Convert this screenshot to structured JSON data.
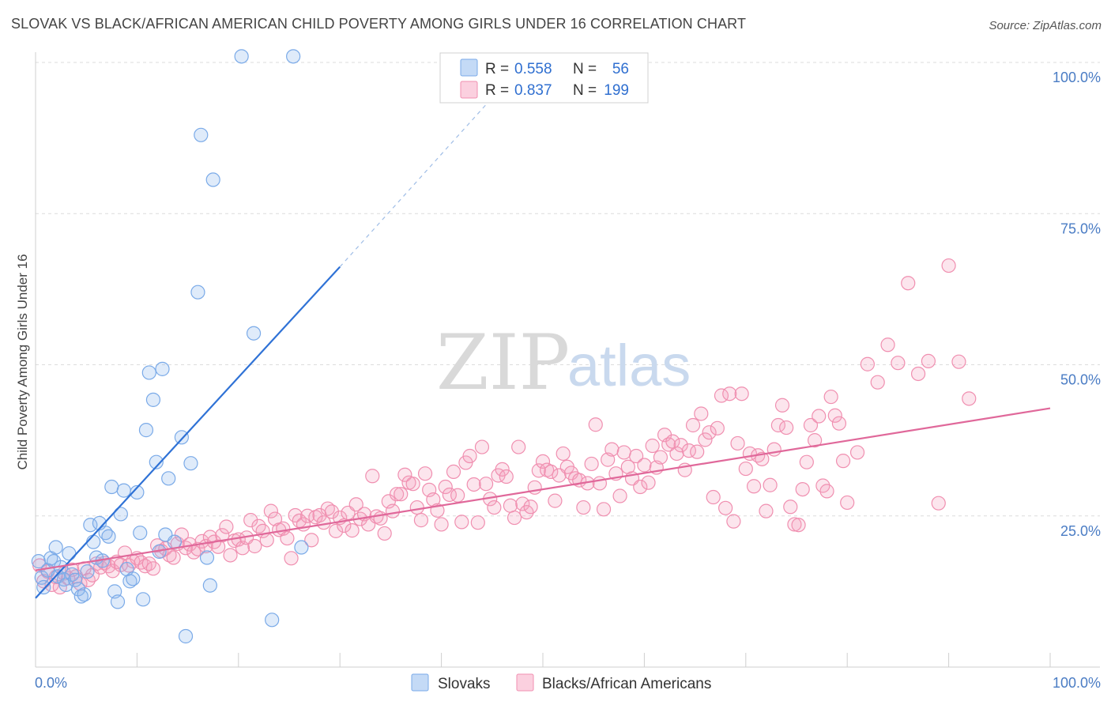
{
  "title": "SLOVAK VS BLACK/AFRICAN AMERICAN CHILD POVERTY AMONG GIRLS UNDER 16 CORRELATION CHART",
  "source": "Source: ZipAtlas.com",
  "watermark": {
    "zip": "ZIP",
    "atlas": "atlas"
  },
  "colors": {
    "slovak": "#7aaae8",
    "black": "#f08fb0",
    "slovak_line": "#2f72d6",
    "black_line": "#e0689a"
  },
  "legend": {
    "r_label": "R =",
    "n_label": "N =",
    "slovak": {
      "r": "0.558",
      "n": "56"
    },
    "black": {
      "r": "0.837",
      "n": "199"
    }
  },
  "bottom_legend": {
    "slovak": "Slovaks",
    "black": "Blacks/African Americans"
  },
  "chart_data": {
    "type": "scatter",
    "title": "SLOVAK VS BLACK/AFRICAN AMERICAN CHILD POVERTY AMONG GIRLS UNDER 16 CORRELATION CHART",
    "xlabel": "",
    "ylabel": "Child Poverty Among Girls Under 16",
    "xlim": [
      0,
      100
    ],
    "ylim": [
      0,
      100
    ],
    "x_tick_labels": [
      "0.0%",
      "100.0%"
    ],
    "y_tick_values": [
      25,
      50,
      75,
      100
    ],
    "y_tick_labels": [
      "25.0%",
      "50.0%",
      "75.0%",
      "100.0%"
    ],
    "grid": true,
    "legend_position": "top-center",
    "series": [
      {
        "name": "Slovaks",
        "r": 0.558,
        "n": 56,
        "trend": {
          "x": [
            0,
            30
          ],
          "y": [
            11.4,
            66.2
          ],
          "dashed_to": [
            46,
            96.0
          ]
        },
        "points": [
          [
            0.3,
            17.5
          ],
          [
            0.6,
            14.8
          ],
          [
            0.8,
            13.2
          ],
          [
            1.2,
            16.0
          ],
          [
            1.5,
            18.0
          ],
          [
            1.8,
            17.5
          ],
          [
            2.0,
            19.8
          ],
          [
            2.2,
            15.0
          ],
          [
            2.5,
            16.5
          ],
          [
            2.8,
            14.5
          ],
          [
            3.0,
            13.6
          ],
          [
            3.3,
            18.8
          ],
          [
            3.6,
            15.3
          ],
          [
            3.9,
            14.4
          ],
          [
            4.2,
            12.9
          ],
          [
            4.5,
            11.7
          ],
          [
            4.8,
            12.0
          ],
          [
            5.1,
            15.8
          ],
          [
            5.4,
            23.5
          ],
          [
            5.7,
            20.7
          ],
          [
            6.0,
            18.1
          ],
          [
            6.3,
            23.8
          ],
          [
            6.6,
            17.6
          ],
          [
            6.9,
            22.2
          ],
          [
            7.2,
            21.6
          ],
          [
            7.5,
            29.8
          ],
          [
            7.8,
            12.5
          ],
          [
            8.1,
            10.8
          ],
          [
            8.4,
            25.3
          ],
          [
            8.7,
            29.2
          ],
          [
            9.0,
            16.2
          ],
          [
            9.3,
            14.2
          ],
          [
            9.6,
            14.6
          ],
          [
            10.0,
            28.9
          ],
          [
            10.3,
            22.2
          ],
          [
            10.6,
            11.2
          ],
          [
            10.9,
            39.2
          ],
          [
            11.2,
            48.7
          ],
          [
            11.6,
            44.2
          ],
          [
            11.9,
            33.9
          ],
          [
            12.2,
            19.1
          ],
          [
            12.5,
            49.3
          ],
          [
            12.8,
            21.9
          ],
          [
            13.1,
            31.2
          ],
          [
            13.7,
            20.7
          ],
          [
            14.4,
            38.0
          ],
          [
            14.8,
            5.1
          ],
          [
            15.3,
            33.7
          ],
          [
            16.0,
            62.0
          ],
          [
            16.3,
            88.0
          ],
          [
            16.9,
            18.1
          ],
          [
            17.2,
            13.5
          ],
          [
            17.5,
            80.6
          ],
          [
            21.5,
            55.2
          ],
          [
            23.3,
            7.8
          ],
          [
            26.2,
            19.8
          ],
          [
            20.3,
            101.0
          ],
          [
            25.4,
            101.0
          ]
        ]
      },
      {
        "name": "Blacks/African Americans",
        "r": 0.837,
        "n": 199,
        "trend": {
          "x": [
            0,
            100
          ],
          "y": [
            16.0,
            42.8
          ]
        },
        "points": [
          [
            0.4,
            16.8
          ],
          [
            0.8,
            14.2
          ],
          [
            1.2,
            15.8
          ],
          [
            1.6,
            13.6
          ],
          [
            2.0,
            14.9
          ],
          [
            2.4,
            13.2
          ],
          [
            2.8,
            15.5
          ],
          [
            3.2,
            14.7
          ],
          [
            3.6,
            16.1
          ],
          [
            4.0,
            15.0
          ],
          [
            4.4,
            13.8
          ],
          [
            4.8,
            16.3
          ],
          [
            5.2,
            14.4
          ],
          [
            5.6,
            15.2
          ],
          [
            6.0,
            17.1
          ],
          [
            6.4,
            16.5
          ],
          [
            6.8,
            17.2
          ],
          [
            7.2,
            16.7
          ],
          [
            7.6,
            15.9
          ],
          [
            8.0,
            17.4
          ],
          [
            8.4,
            16.9
          ],
          [
            8.8,
            18.9
          ],
          [
            9.2,
            16.8
          ],
          [
            9.6,
            17.5
          ],
          [
            10.0,
            18.0
          ],
          [
            10.4,
            17.3
          ],
          [
            10.8,
            16.7
          ],
          [
            11.2,
            17.1
          ],
          [
            11.6,
            16.3
          ],
          [
            12.0,
            20.1
          ],
          [
            12.4,
            19.2
          ],
          [
            12.8,
            19.6
          ],
          [
            13.2,
            18.5
          ],
          [
            13.6,
            18.1
          ],
          [
            14.0,
            20.4
          ],
          [
            14.4,
            21.9
          ],
          [
            14.8,
            19.7
          ],
          [
            15.2,
            20.3
          ],
          [
            15.6,
            19.0
          ],
          [
            16.0,
            19.5
          ],
          [
            16.4,
            20.8
          ],
          [
            16.8,
            20.0
          ],
          [
            17.2,
            21.5
          ],
          [
            17.6,
            20.7
          ],
          [
            18.0,
            19.9
          ],
          [
            18.4,
            21.8
          ],
          [
            18.8,
            23.2
          ],
          [
            19.2,
            18.5
          ],
          [
            19.6,
            20.9
          ],
          [
            20.0,
            21.1
          ],
          [
            20.4,
            19.7
          ],
          [
            20.8,
            21.4
          ],
          [
            21.2,
            24.3
          ],
          [
            21.6,
            20.0
          ],
          [
            22.0,
            23.3
          ],
          [
            22.4,
            22.5
          ],
          [
            22.8,
            21.0
          ],
          [
            23.2,
            25.8
          ],
          [
            23.6,
            24.5
          ],
          [
            24.0,
            22.7
          ],
          [
            24.4,
            22.9
          ],
          [
            24.8,
            21.3
          ],
          [
            25.2,
            18.0
          ],
          [
            25.6,
            25.1
          ],
          [
            26.0,
            24.2
          ],
          [
            26.4,
            23.6
          ],
          [
            26.8,
            25.0
          ],
          [
            27.2,
            21.0
          ],
          [
            27.6,
            24.8
          ],
          [
            28.0,
            25.1
          ],
          [
            28.4,
            23.9
          ],
          [
            28.8,
            26.2
          ],
          [
            29.2,
            25.7
          ],
          [
            29.6,
            22.5
          ],
          [
            30.0,
            24.7
          ],
          [
            30.4,
            23.4
          ],
          [
            30.8,
            25.5
          ],
          [
            31.2,
            22.6
          ],
          [
            31.6,
            26.9
          ],
          [
            32.0,
            24.5
          ],
          [
            32.4,
            25.3
          ],
          [
            32.8,
            23.6
          ],
          [
            33.2,
            31.6
          ],
          [
            33.6,
            24.9
          ],
          [
            34.0,
            24.6
          ],
          [
            34.4,
            22.1
          ],
          [
            34.8,
            27.4
          ],
          [
            35.2,
            25.8
          ],
          [
            35.6,
            28.6
          ],
          [
            36.0,
            28.6
          ],
          [
            36.4,
            31.8
          ],
          [
            36.8,
            30.5
          ],
          [
            37.2,
            30.3
          ],
          [
            37.6,
            26.4
          ],
          [
            38.0,
            24.3
          ],
          [
            38.4,
            32.0
          ],
          [
            38.8,
            29.3
          ],
          [
            39.2,
            27.7
          ],
          [
            39.6,
            25.9
          ],
          [
            40.0,
            23.6
          ],
          [
            40.4,
            29.8
          ],
          [
            40.8,
            28.5
          ],
          [
            41.2,
            32.3
          ],
          [
            41.6,
            28.4
          ],
          [
            42.0,
            24.0
          ],
          [
            42.4,
            33.8
          ],
          [
            42.8,
            34.9
          ],
          [
            43.2,
            30.2
          ],
          [
            43.6,
            23.9
          ],
          [
            44.0,
            36.4
          ],
          [
            44.4,
            30.3
          ],
          [
            44.8,
            27.8
          ],
          [
            45.2,
            26.4
          ],
          [
            45.6,
            31.7
          ],
          [
            46.0,
            32.7
          ],
          [
            46.4,
            31.5
          ],
          [
            46.8,
            26.7
          ],
          [
            47.2,
            24.7
          ],
          [
            47.6,
            36.4
          ],
          [
            48.0,
            27.0
          ],
          [
            48.4,
            25.6
          ],
          [
            48.8,
            26.5
          ],
          [
            49.2,
            29.7
          ],
          [
            49.6,
            32.5
          ],
          [
            50.0,
            34.0
          ],
          [
            50.4,
            32.6
          ],
          [
            50.8,
            32.3
          ],
          [
            51.2,
            27.5
          ],
          [
            51.6,
            31.7
          ],
          [
            52.0,
            35.3
          ],
          [
            52.4,
            33.1
          ],
          [
            52.8,
            32.1
          ],
          [
            53.2,
            31.2
          ],
          [
            53.6,
            30.9
          ],
          [
            54.0,
            26.4
          ],
          [
            54.4,
            30.4
          ],
          [
            54.8,
            33.6
          ],
          [
            55.2,
            40.1
          ],
          [
            55.6,
            30.4
          ],
          [
            56.0,
            26.1
          ],
          [
            56.4,
            34.3
          ],
          [
            56.8,
            36.0
          ],
          [
            57.2,
            32.0
          ],
          [
            57.6,
            28.3
          ],
          [
            58.0,
            35.5
          ],
          [
            58.4,
            33.1
          ],
          [
            58.8,
            31.2
          ],
          [
            59.2,
            34.9
          ],
          [
            59.6,
            29.8
          ],
          [
            60.0,
            33.4
          ],
          [
            60.4,
            30.5
          ],
          [
            60.8,
            36.6
          ],
          [
            61.2,
            33.0
          ],
          [
            61.6,
            34.7
          ],
          [
            62.0,
            38.4
          ],
          [
            62.4,
            36.8
          ],
          [
            62.8,
            37.3
          ],
          [
            63.2,
            35.3
          ],
          [
            63.6,
            36.7
          ],
          [
            64.0,
            32.6
          ],
          [
            64.4,
            35.8
          ],
          [
            64.8,
            40.0
          ],
          [
            65.2,
            35.6
          ],
          [
            65.6,
            41.9
          ],
          [
            66.0,
            37.6
          ],
          [
            66.4,
            38.8
          ],
          [
            66.8,
            28.1
          ],
          [
            67.2,
            39.5
          ],
          [
            67.6,
            44.9
          ],
          [
            68.0,
            26.3
          ],
          [
            68.4,
            45.2
          ],
          [
            68.8,
            24.1
          ],
          [
            69.2,
            37.0
          ],
          [
            69.6,
            45.2
          ],
          [
            70.0,
            32.8
          ],
          [
            70.4,
            35.3
          ],
          [
            70.8,
            29.9
          ],
          [
            71.2,
            35.0
          ],
          [
            71.6,
            34.4
          ],
          [
            72.0,
            25.8
          ],
          [
            72.4,
            30.1
          ],
          [
            72.8,
            36.0
          ],
          [
            73.2,
            40.0
          ],
          [
            73.6,
            43.3
          ],
          [
            74.0,
            39.6
          ],
          [
            74.4,
            26.5
          ],
          [
            74.8,
            23.6
          ],
          [
            75.2,
            23.5
          ],
          [
            75.6,
            29.4
          ],
          [
            76.0,
            33.9
          ],
          [
            76.4,
            40.0
          ],
          [
            76.8,
            37.5
          ],
          [
            77.2,
            41.5
          ],
          [
            77.6,
            30.0
          ],
          [
            78.0,
            29.1
          ],
          [
            78.4,
            44.7
          ],
          [
            78.8,
            41.6
          ],
          [
            79.2,
            40.3
          ],
          [
            79.6,
            34.1
          ],
          [
            80.0,
            27.2
          ],
          [
            81.0,
            35.5
          ],
          [
            82.0,
            50.1
          ],
          [
            83.0,
            47.1
          ],
          [
            84.0,
            53.3
          ],
          [
            85.0,
            50.3
          ],
          [
            86.0,
            63.5
          ],
          [
            87.0,
            48.5
          ],
          [
            88.0,
            50.6
          ],
          [
            89.0,
            27.1
          ],
          [
            90.0,
            66.4
          ],
          [
            91.0,
            50.5
          ],
          [
            92.0,
            44.4
          ]
        ]
      }
    ]
  }
}
